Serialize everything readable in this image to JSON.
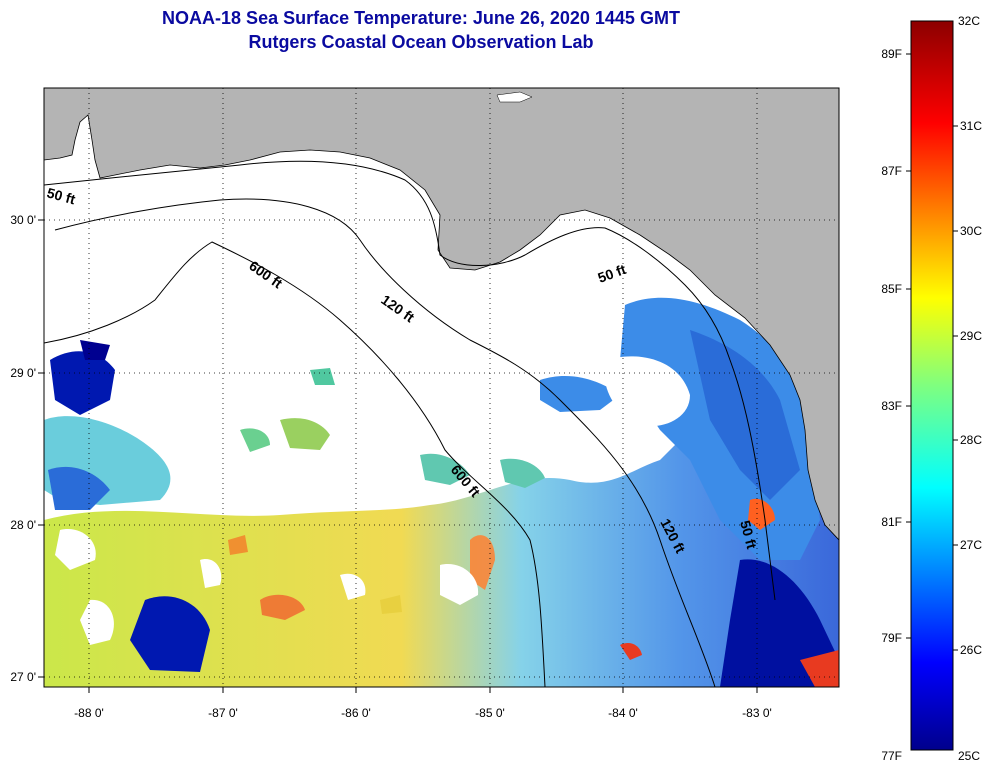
{
  "header": {
    "title": "NOAA-18 Sea Surface Temperature:  June 26, 2020 1445 GMT",
    "subtitle": "Rutgers Coastal Ocean Observation Lab"
  },
  "axes": {
    "lat_labels": [
      "30 0'",
      "29 0'",
      "28 0'",
      "27 0'"
    ],
    "lon_labels": [
      "-88 0'",
      "-87 0'",
      "-86 0'",
      "-85 0'",
      "-84 0'",
      "-83 0'"
    ]
  },
  "contours": {
    "c50_west": "50 ft",
    "c600_north": "600 ft",
    "c120_north": "120 ft",
    "c50_east": "50 ft",
    "c600_south": "600 ft",
    "c120_south": "120 ft",
    "c50_south": "50 ft"
  },
  "colorbar": {
    "fahrenheit": [
      "89F",
      "87F",
      "85F",
      "83F",
      "81F",
      "79F",
      "77F"
    ],
    "celsius": [
      "32C",
      "31C",
      "30C",
      "29C",
      "28C",
      "27C",
      "26C",
      "25C"
    ]
  },
  "colors": {
    "land": "#b4b4b4",
    "title": "#0a0aa0",
    "cold": "#00008c",
    "warm": "#8c0000"
  }
}
